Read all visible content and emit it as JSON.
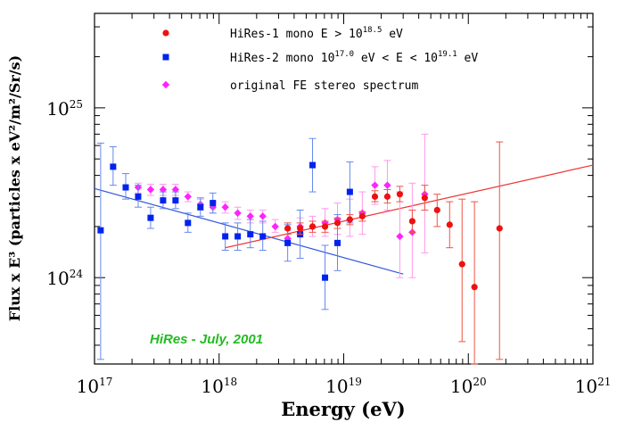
{
  "chart_data": {
    "type": "scatter",
    "xscale": "log",
    "yscale": "log",
    "xlim": [
      1e+17,
      1e+21
    ],
    "ylim": [
      3.1e+23,
      3.6e+25
    ],
    "xlabel": "Energy (eV)",
    "ylabel": "Flux x E³ (particles x eV²/m²/Sr/s)",
    "x_ticks": [
      {
        "value": 1e+17,
        "base": "10",
        "exp": "17"
      },
      {
        "value": 1e+18,
        "base": "10",
        "exp": "18"
      },
      {
        "value": 1e+19,
        "base": "10",
        "exp": "19"
      },
      {
        "value": 1e+20,
        "base": "10",
        "exp": "20"
      },
      {
        "value": 1e+21,
        "base": "10",
        "exp": "21"
      }
    ],
    "y_ticks": [
      {
        "value": 1e+24,
        "base": "10",
        "exp": "24"
      },
      {
        "value": 1e+25,
        "base": "10",
        "exp": "25"
      }
    ],
    "annotation": {
      "text": "HiRes - July, 2001",
      "color": "#22bb22"
    },
    "legend": {
      "position": "top-center",
      "entries": [
        {
          "label_main": "HiRes-1 mono E > 10",
          "sup1": "18.5",
          "label_tail": " eV",
          "color": "#ee1111",
          "marker": "circle"
        },
        {
          "label_main": "HiRes-2 mono 10",
          "sup1": "17.0",
          "label_mid": " eV < E < 10",
          "sup2": "19.1",
          "label_tail": " eV",
          "color": "#0022ee",
          "marker": "square"
        },
        {
          "label_main": "original FE stereo spectrum",
          "color": "#ff22ff",
          "marker": "diamond"
        }
      ]
    },
    "series": [
      {
        "name": "original FE stereo spectrum",
        "color": "#ff22ff",
        "err_color": "#ff99ee",
        "marker": "diamond",
        "points": [
          [
            2.24e+17,
            3.4e+24,
            3.15e+24,
            3.6e+24
          ],
          [
            2.82e+17,
            3.3e+24,
            3.05e+24,
            3.55e+24
          ],
          [
            3.55e+17,
            3.3e+24,
            3.05e+24,
            3.55e+24
          ],
          [
            4.47e+17,
            3.3e+24,
            3.05e+24,
            3.55e+24
          ],
          [
            5.62e+17,
            3e+24,
            2.8e+24,
            3.2e+24
          ],
          [
            7.08e+17,
            2.7e+24,
            2.5e+24,
            2.9e+24
          ],
          [
            8.91e+17,
            2.6e+24,
            2.4e+24,
            2.8e+24
          ],
          [
            1.12e+18,
            2.6e+24,
            2.4e+24,
            2.8e+24
          ],
          [
            1.41e+18,
            2.4e+24,
            2.2e+24,
            2.6e+24
          ],
          [
            1.78e+18,
            2.3e+24,
            2.1e+24,
            2.5e+24
          ],
          [
            2.24e+18,
            2.3e+24,
            2.1e+24,
            2.5e+24
          ],
          [
            2.82e+18,
            2e+24,
            1.85e+24,
            2.2e+24
          ],
          [
            3.55e+18,
            1.7e+24,
            1.55e+24,
            1.9e+24
          ],
          [
            4.47e+18,
            2e+24,
            1.8e+24,
            2.25e+24
          ],
          [
            5.62e+18,
            2e+24,
            1.75e+24,
            2.3e+24
          ],
          [
            7.08e+18,
            2.1e+24,
            1.75e+24,
            2.55e+24
          ],
          [
            8.91e+18,
            2.2e+24,
            1.8e+24,
            2.75e+24
          ],
          [
            1.12e+19,
            2.2e+24,
            1.75e+24,
            2.9e+24
          ],
          [
            1.41e+19,
            2.4e+24,
            1.8e+24,
            3.2e+24
          ],
          [
            1.78e+19,
            3.5e+24,
            2.7e+24,
            4.5e+24
          ],
          [
            2.24e+19,
            3.5e+24,
            2.5e+24,
            4.9e+24
          ],
          [
            2.82e+19,
            1.75e+24,
            1e+24,
            3.2e+24
          ],
          [
            3.55e+19,
            1.85e+24,
            1e+24,
            3.6e+24
          ],
          [
            4.47e+19,
            3.1e+24,
            1.4e+24,
            7e+24
          ]
        ]
      },
      {
        "name": "HiRes-2 mono",
        "color": "#0022ee",
        "err_color": "#6688ee",
        "marker": "square",
        "points": [
          [
            1.12e+17,
            1.9e+24,
            3.3e+23,
            6.2e+24
          ],
          [
            1.41e+17,
            4.5e+24,
            3.5e+24,
            5.9e+24
          ],
          [
            1.78e+17,
            3.4e+24,
            2.9e+24,
            4.1e+24
          ],
          [
            2.24e+17,
            3e+24,
            2.6e+24,
            3.5e+24
          ],
          [
            2.82e+17,
            2.25e+24,
            1.95e+24,
            2.6e+24
          ],
          [
            3.55e+17,
            2.85e+24,
            2.55e+24,
            3.2e+24
          ],
          [
            4.47e+17,
            2.85e+24,
            2.55e+24,
            3.2e+24
          ],
          [
            5.62e+17,
            2.1e+24,
            1.85e+24,
            2.4e+24
          ],
          [
            7.08e+17,
            2.6e+24,
            2.3e+24,
            2.95e+24
          ],
          [
            8.91e+17,
            2.75e+24,
            2.4e+24,
            3.15e+24
          ],
          [
            1.12e+18,
            1.75e+24,
            1.45e+24,
            2.1e+24
          ],
          [
            1.41e+18,
            1.75e+24,
            1.45e+24,
            2.1e+24
          ],
          [
            1.78e+18,
            1.8e+24,
            1.5e+24,
            2.2e+24
          ],
          [
            2.24e+18,
            1.75e+24,
            1.45e+24,
            2.15e+24
          ],
          [
            3.55e+18,
            1.6e+24,
            1.25e+24,
            2.05e+24
          ],
          [
            4.47e+18,
            1.8e+24,
            1.3e+24,
            2.5e+24
          ],
          [
            5.62e+18,
            4.6e+24,
            3.2e+24,
            6.6e+24
          ],
          [
            7.08e+18,
            1e+24,
            6.5e+23,
            1.55e+24
          ],
          [
            8.91e+18,
            1.6e+24,
            1.1e+24,
            2.35e+24
          ],
          [
            1.12e+19,
            3.2e+24,
            2.1e+24,
            4.8e+24
          ]
        ]
      },
      {
        "name": "HiRes-1 mono",
        "color": "#ee1111",
        "err_color": "#ee5544",
        "marker": "circle",
        "points": [
          [
            3.55e+18,
            1.95e+24,
            1.8e+24,
            2.1e+24
          ],
          [
            4.47e+18,
            1.95e+24,
            1.8e+24,
            2.1e+24
          ],
          [
            5.62e+18,
            2e+24,
            1.85e+24,
            2.15e+24
          ],
          [
            7.08e+18,
            2e+24,
            1.85e+24,
            2.15e+24
          ],
          [
            8.91e+18,
            2.1e+24,
            1.95e+24,
            2.25e+24
          ],
          [
            1.12e+19,
            2.2e+24,
            2.05e+24,
            2.35e+24
          ],
          [
            1.41e+19,
            2.3e+24,
            2.15e+24,
            2.45e+24
          ],
          [
            1.78e+19,
            3e+24,
            2.8e+24,
            3.25e+24
          ],
          [
            2.24e+19,
            3e+24,
            2.75e+24,
            3.3e+24
          ],
          [
            2.82e+19,
            3.1e+24,
            2.8e+24,
            3.45e+24
          ],
          [
            3.55e+19,
            2.15e+24,
            1.85e+24,
            2.5e+24
          ],
          [
            4.47e+19,
            2.95e+24,
            2.5e+24,
            3.5e+24
          ],
          [
            5.62e+19,
            2.5e+24,
            2e+24,
            3.1e+24
          ],
          [
            7.08e+19,
            2.05e+24,
            1.5e+24,
            2.8e+24
          ],
          [
            8.91e+19,
            1.2e+24,
            4.2e+23,
            2.9e+24
          ],
          [
            1.12e+20,
            8.8e+23,
            3.1e+23,
            2.8e+24
          ],
          [
            1.78e+20,
            1.95e+24,
            3.3e+23,
            6.3e+24
          ]
        ]
      }
    ],
    "fit_lines": [
      {
        "name": "HiRes-2 fit",
        "color": "#3355dd",
        "x": [
          1e+17,
          3e+19
        ],
        "y": [
          3.35e+24,
          1.05e+24
        ]
      },
      {
        "name": "HiRes-1 fit",
        "color": "#ee3333",
        "x": [
          1.12e+18,
          1e+21
        ],
        "y": [
          1.5e+24,
          4.6e+24
        ]
      }
    ]
  }
}
